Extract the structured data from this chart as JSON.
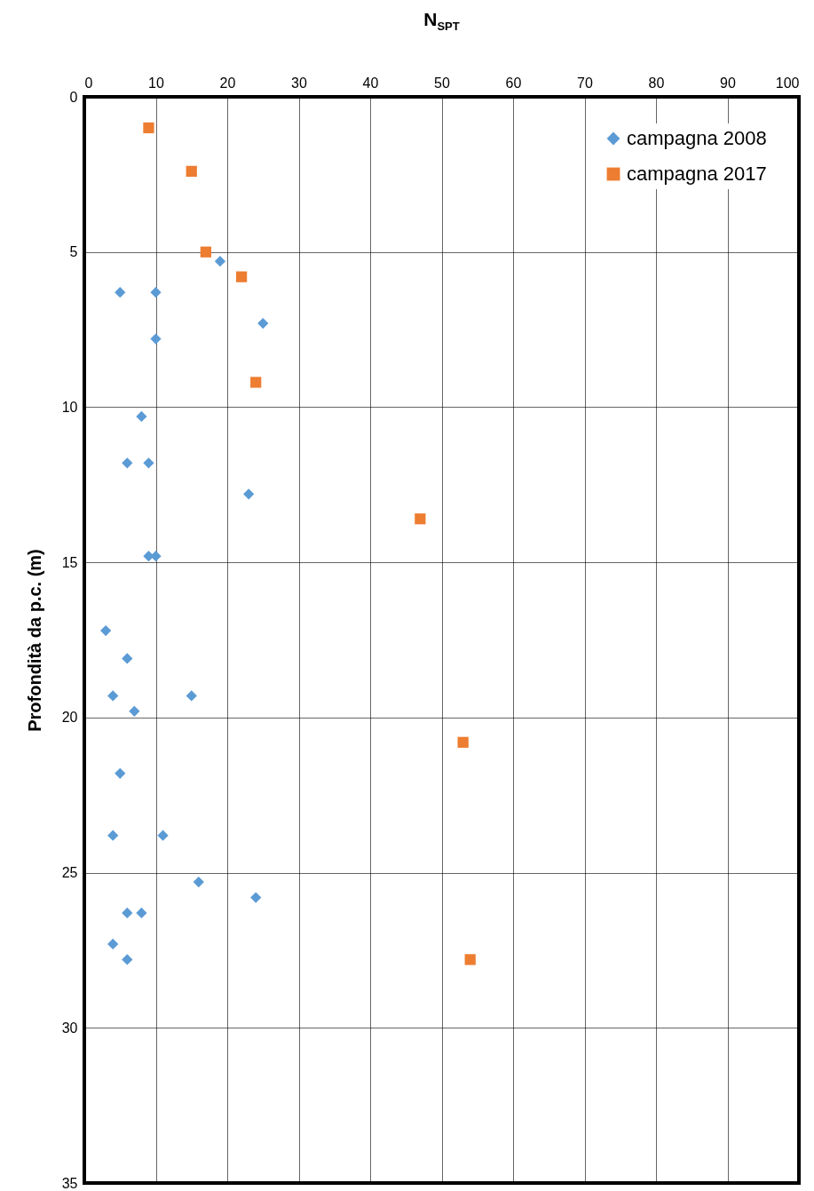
{
  "chart_data": {
    "type": "scatter",
    "xlabel": "N$_{SPT}$",
    "ylabel": "Profondità da p.c. (m)",
    "xlim": [
      0,
      100
    ],
    "xticks": [
      0,
      10,
      20,
      30,
      40,
      50,
      60,
      70,
      80,
      90,
      100
    ],
    "ylim": [
      35,
      0
    ],
    "yticks": [
      0,
      5,
      10,
      15,
      20,
      25,
      30,
      35
    ],
    "grid": true,
    "legend": "top right",
    "series": [
      {
        "name": "campagna 2008",
        "color": "#5b9bd5",
        "marker": "diamond",
        "x": [
          5,
          10,
          19,
          25,
          10,
          8,
          6,
          9,
          23,
          9,
          10,
          3,
          6,
          4,
          15,
          7,
          5,
          4,
          11,
          16,
          24,
          6,
          8,
          4,
          6
        ],
        "values": [
          6.3,
          6.3,
          5.3,
          7.3,
          7.8,
          10.3,
          11.8,
          11.8,
          12.8,
          14.8,
          14.8,
          17.2,
          18.1,
          19.3,
          19.3,
          19.8,
          21.8,
          23.8,
          23.8,
          25.3,
          25.8,
          26.3,
          26.3,
          27.3,
          27.8
        ]
      },
      {
        "name": "campagna 2017",
        "color": "#ed7d31",
        "marker": "square",
        "x": [
          9,
          15,
          17,
          22,
          24,
          47,
          53,
          54
        ],
        "values": [
          1.0,
          2.4,
          5.0,
          5.8,
          9.2,
          13.6,
          20.8,
          27.8
        ]
      }
    ]
  }
}
